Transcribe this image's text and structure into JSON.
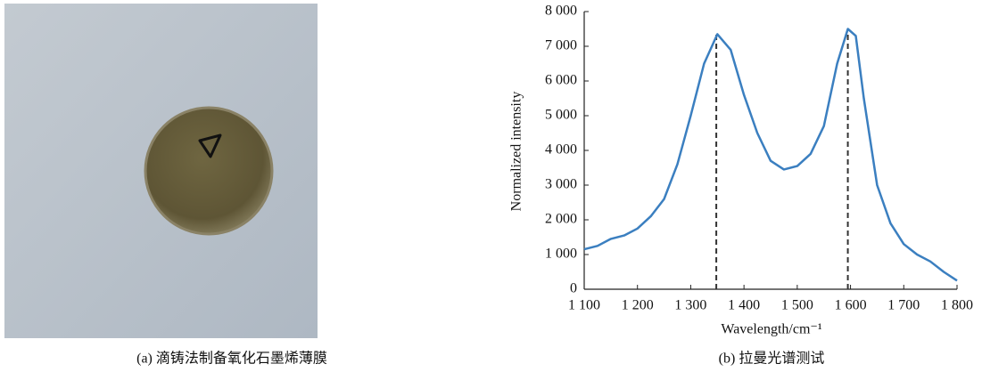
{
  "photo": {
    "caption": "(a) 滴铸法制备氧化石墨烯薄膜"
  },
  "chart_data": {
    "type": "line",
    "caption": "(b) 拉曼光谱测试",
    "x_label": "Wavelength/cm⁻¹",
    "y_label": "Normalized intensity",
    "x": [
      1100,
      1125,
      1150,
      1175,
      1200,
      1225,
      1250,
      1275,
      1300,
      1325,
      1350,
      1375,
      1400,
      1425,
      1450,
      1475,
      1500,
      1525,
      1550,
      1575,
      1595,
      1610,
      1625,
      1650,
      1675,
      1700,
      1725,
      1750,
      1775,
      1800
    ],
    "series": [
      {
        "color": "#3b7fc0",
        "values": [
          1150,
          1250,
          1450,
          1550,
          1750,
          2100,
          2600,
          3600,
          5000,
          6500,
          7350,
          6900,
          5600,
          4500,
          3700,
          3450,
          3550,
          3900,
          4700,
          6500,
          7500,
          7300,
          5500,
          3000,
          1900,
          1300,
          1000,
          800,
          500,
          250
        ]
      }
    ],
    "reference_lines": [
      1348,
      1595
    ],
    "xlim": [
      1100,
      1800
    ],
    "ylim": [
      0,
      8000
    ],
    "xticks": [
      {
        "value": 1100,
        "label": "1 100"
      },
      {
        "value": 1200,
        "label": "1 200"
      },
      {
        "value": 1300,
        "label": "1 300"
      },
      {
        "value": 1400,
        "label": "1 400"
      },
      {
        "value": 1500,
        "label": "1 500"
      },
      {
        "value": 1600,
        "label": "1 600"
      },
      {
        "value": 1700,
        "label": "1 700"
      },
      {
        "value": 1800,
        "label": "1 800"
      }
    ],
    "yticks": [
      0,
      {
        "value": 1000,
        "label": "1 000"
      },
      {
        "value": 2000,
        "label": "2 000"
      },
      {
        "value": 3000,
        "label": "3 000"
      },
      {
        "value": 4000,
        "label": "4 000"
      },
      {
        "value": 5000,
        "label": "5 000"
      },
      {
        "value": 6000,
        "label": "6 000"
      },
      {
        "value": 7000,
        "label": "7 000"
      },
      {
        "value": 8000,
        "label": "8 000"
      }
    ]
  }
}
